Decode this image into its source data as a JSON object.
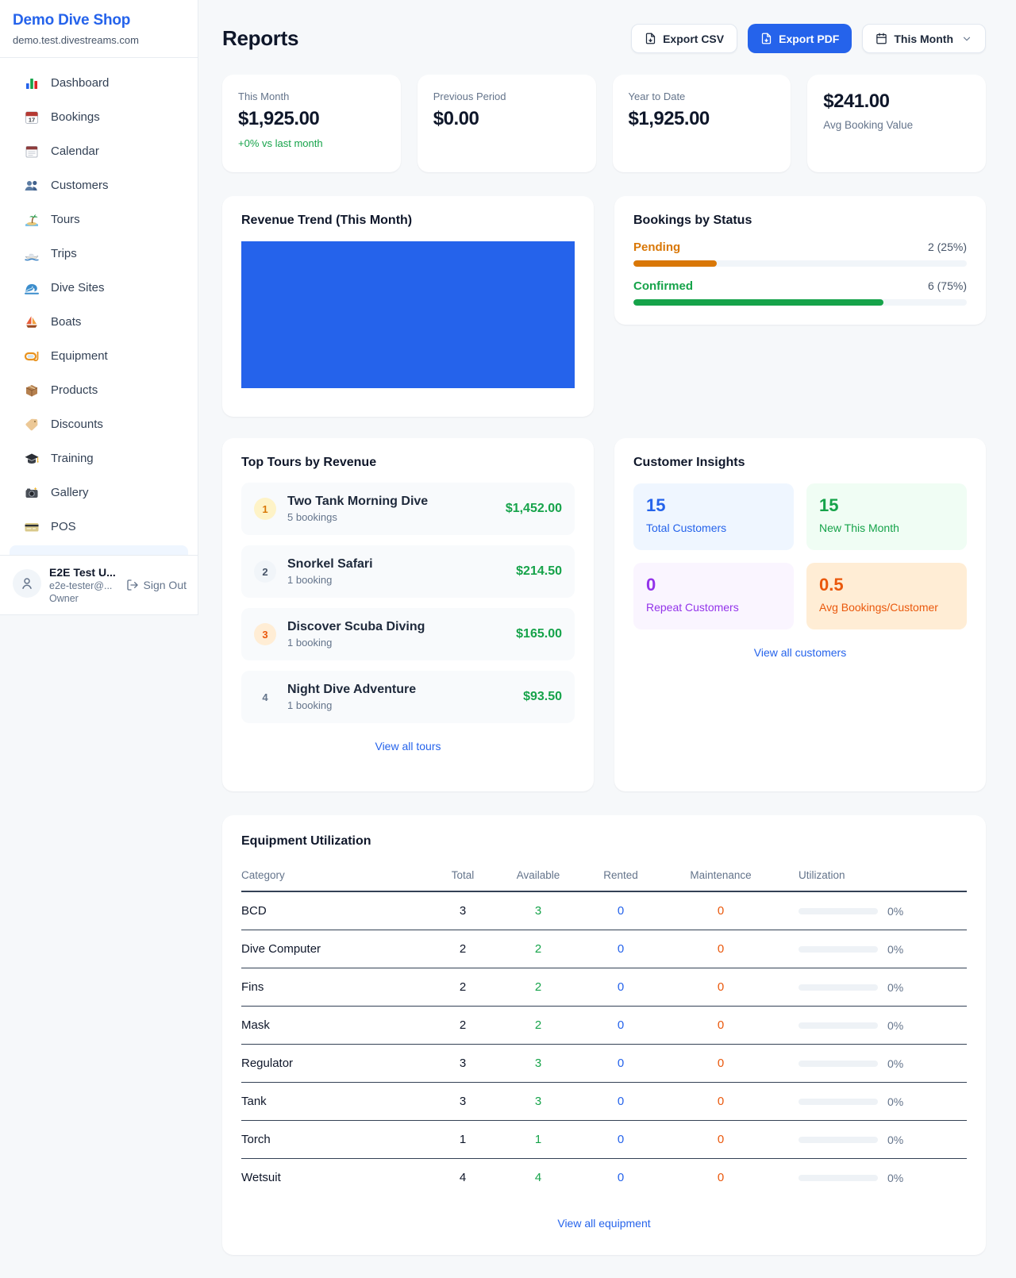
{
  "colors": {
    "brand_blue": "#2563eb",
    "green": "#16a34a",
    "pending_orange": "#d97706",
    "maintenance_orange": "#ea580c",
    "purple": "#9333ea",
    "page_bg": "#f6f8fa"
  },
  "sidebar": {
    "brand": {
      "name": "Demo Dive Shop",
      "domain": "demo.test.divestreams.com"
    },
    "nav": [
      {
        "icon": "bar-chart-icon",
        "label": "Dashboard"
      },
      {
        "icon": "calendar-date-icon",
        "label": "Bookings"
      },
      {
        "icon": "tear-calendar-icon",
        "label": "Calendar"
      },
      {
        "icon": "users-icon",
        "label": "Customers"
      },
      {
        "icon": "island-icon",
        "label": "Tours"
      },
      {
        "icon": "speedboat-icon",
        "label": "Trips"
      },
      {
        "icon": "wave-icon",
        "label": "Dive Sites"
      },
      {
        "icon": "sailboat-icon",
        "label": "Boats"
      },
      {
        "icon": "diving-mask-icon",
        "label": "Equipment"
      },
      {
        "icon": "package-icon",
        "label": "Products"
      },
      {
        "icon": "tag-icon",
        "label": "Discounts"
      },
      {
        "icon": "graduation-cap-icon",
        "label": "Training"
      },
      {
        "icon": "camera-icon",
        "label": "Gallery"
      },
      {
        "icon": "credit-card-icon",
        "label": "POS"
      }
    ],
    "user": {
      "name": "E2E Test U...",
      "email": "e2e-tester@...",
      "role": "Owner",
      "sign_out_label": "Sign Out"
    }
  },
  "header": {
    "title": "Reports",
    "export_csv_label": "Export CSV",
    "export_pdf_label": "Export PDF",
    "period_label": "This Month"
  },
  "stats": [
    {
      "label": "This Month",
      "value": "$1,925.00",
      "delta": "+0% vs last month"
    },
    {
      "label": "Previous Period",
      "value": "$0.00"
    },
    {
      "label": "Year to Date",
      "value": "$1,925.00"
    },
    {
      "label": "Avg Booking Value",
      "value": "$241.00"
    }
  ],
  "revenue_trend": {
    "title": "Revenue Trend (This Month)"
  },
  "bookings_by_status": {
    "title": "Bookings by Status",
    "items": [
      {
        "label": "Pending",
        "value": "2 (25%)",
        "pct": 25,
        "color": "#d97706"
      },
      {
        "label": "Confirmed",
        "value": "6 (75%)",
        "pct": 75,
        "color": "#16a34a"
      }
    ]
  },
  "top_tours": {
    "title": "Top Tours by Revenue",
    "link": "View all tours",
    "items": [
      {
        "rank": "1",
        "name": "Two Tank Morning Dive",
        "bookings": "5 bookings",
        "revenue": "$1,452.00"
      },
      {
        "rank": "2",
        "name": "Snorkel Safari",
        "bookings": "1 booking",
        "revenue": "$214.50"
      },
      {
        "rank": "3",
        "name": "Discover Scuba Diving",
        "bookings": "1 booking",
        "revenue": "$165.00"
      },
      {
        "rank": "4",
        "name": "Night Dive Adventure",
        "bookings": "1 booking",
        "revenue": "$93.50"
      }
    ]
  },
  "customer_insights": {
    "title": "Customer Insights",
    "link": "View all customers",
    "tiles": [
      {
        "value": "15",
        "label": "Total Customers",
        "accent": "#2563eb"
      },
      {
        "value": "15",
        "label": "New This Month",
        "accent": "#16a34a"
      },
      {
        "value": "0",
        "label": "Repeat Customers",
        "accent": "#9333ea"
      },
      {
        "value": "0.5",
        "label": "Avg Bookings/Customer",
        "accent": "#ea580c"
      }
    ]
  },
  "equipment": {
    "title": "Equipment Utilization",
    "link": "View all equipment",
    "columns": [
      "Category",
      "Total",
      "Available",
      "Rented",
      "Maintenance",
      "Utilization"
    ],
    "rows": [
      {
        "category": "BCD",
        "total": "3",
        "available": "3",
        "rented": "0",
        "maintenance": "0",
        "utilization": "0%",
        "utilization_pct": 0
      },
      {
        "category": "Dive Computer",
        "total": "2",
        "available": "2",
        "rented": "0",
        "maintenance": "0",
        "utilization": "0%",
        "utilization_pct": 0
      },
      {
        "category": "Fins",
        "total": "2",
        "available": "2",
        "rented": "0",
        "maintenance": "0",
        "utilization": "0%",
        "utilization_pct": 0
      },
      {
        "category": "Mask",
        "total": "2",
        "available": "2",
        "rented": "0",
        "maintenance": "0",
        "utilization": "0%",
        "utilization_pct": 0
      },
      {
        "category": "Regulator",
        "total": "3",
        "available": "3",
        "rented": "0",
        "maintenance": "0",
        "utilization": "0%",
        "utilization_pct": 0
      },
      {
        "category": "Tank",
        "total": "3",
        "available": "3",
        "rented": "0",
        "maintenance": "0",
        "utilization": "0%",
        "utilization_pct": 0
      },
      {
        "category": "Torch",
        "total": "1",
        "available": "1",
        "rented": "0",
        "maintenance": "0",
        "utilization": "0%",
        "utilization_pct": 0
      },
      {
        "category": "Wetsuit",
        "total": "4",
        "available": "4",
        "rented": "0",
        "maintenance": "0",
        "utilization": "0%",
        "utilization_pct": 0
      }
    ]
  },
  "chart_data": [
    {
      "type": "bar",
      "title": "Revenue Trend (This Month)",
      "categories": [
        "This Month"
      ],
      "values": [
        1925
      ],
      "unit": "USD",
      "bar_color": "#2563eb",
      "xlabel": "",
      "ylabel": "",
      "note": "Single solid bar filling the entire plot area; no visible axes, ticks or gridlines"
    },
    {
      "type": "bar",
      "title": "Bookings by Status",
      "categories": [
        "Pending",
        "Confirmed"
      ],
      "values": [
        2,
        6
      ],
      "percentages": [
        25,
        75
      ],
      "colors": [
        "#d97706",
        "#16a34a"
      ],
      "layout": "horizontal progress bars with label left and count (percent) right"
    }
  ]
}
